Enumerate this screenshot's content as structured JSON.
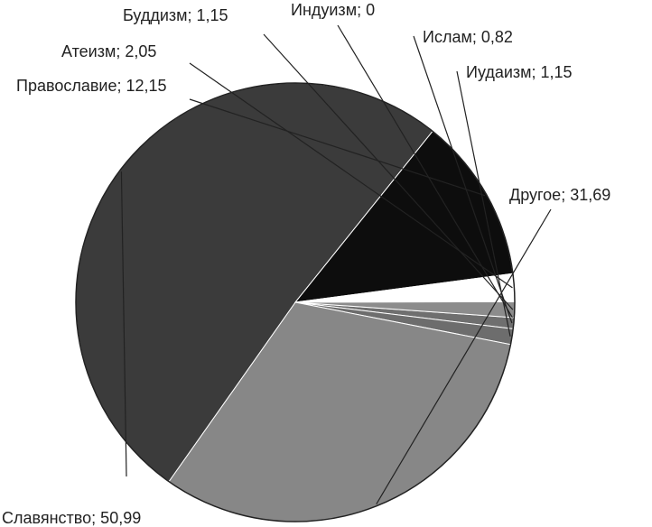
{
  "chart_data": {
    "type": "pie",
    "slices": [
      {
        "label": "Ислам",
        "value": 0.82,
        "text": "Ислам; 0,82",
        "color": "#6f6f6f"
      },
      {
        "label": "Иудаизм",
        "value": 1.15,
        "text": "Иудаизм; 1,15",
        "color": "#6d6d6d"
      },
      {
        "label": "Другое",
        "value": 31.69,
        "text": "Другое; 31,69",
        "color": "#878787"
      },
      {
        "label": "Славянство",
        "value": 50.99,
        "text": "Славянство; 50,99",
        "color": "#3b3b3b"
      },
      {
        "label": "Православие",
        "value": 12.15,
        "text": "Православие; 12,15",
        "color": "#0d0d0d"
      },
      {
        "label": "Атеизм",
        "value": 2.05,
        "text": "Атеизм; 2,05",
        "color": "#ffffff"
      },
      {
        "label": "Буддизм",
        "value": 1.15,
        "text": "Буддизм; 1,15",
        "color": "#8c8c8c"
      },
      {
        "label": "Индуизм",
        "value": 0,
        "text": "Индуизм; 0",
        "color": "#dcdcdc"
      }
    ],
    "outline_color": "#222222"
  }
}
